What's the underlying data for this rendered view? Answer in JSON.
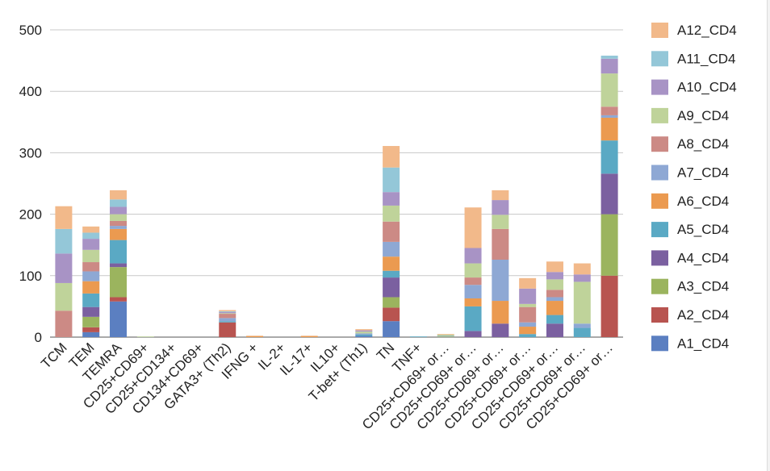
{
  "chart_data": {
    "type": "bar",
    "stacked": true,
    "title": "",
    "xlabel": "",
    "ylabel": "",
    "ylim": [
      0,
      500
    ],
    "yticks": [
      0,
      100,
      200,
      300,
      400,
      500
    ],
    "grid": true,
    "legend_position": "right",
    "categories": [
      "TCM",
      "TEM",
      "TEMRA",
      "CD25+CD69+",
      "CD25+CD134+",
      "CD134+CD69+",
      "GATA3+ (Th2)",
      "IFNG +",
      "IL-2+",
      "IL-17+",
      "IL10+",
      "T-bet+ (Th1)",
      "TN",
      "TNF+",
      "CD25+CD69+ or…",
      "CD25+CD69+ or…",
      "CD25+CD69+ or…",
      "CD25+CD69+ or…",
      "CD25+CD69+ or…",
      "CD25+CD69+ or…",
      "CD25+CD69+ or…"
    ],
    "series": [
      {
        "name": "A1_CD4",
        "color": "#5b7fc1",
        "values": [
          0,
          8,
          58,
          0,
          0,
          0,
          0,
          0,
          0,
          0,
          0,
          2,
          26,
          0,
          0,
          0,
          0,
          0,
          0,
          0,
          0
        ]
      },
      {
        "name": "A2_CD4",
        "color": "#b85450",
        "values": [
          0,
          8,
          7,
          0,
          0,
          0,
          24,
          0,
          0,
          0,
          0,
          0,
          22,
          0,
          0,
          0,
          0,
          0,
          0,
          0,
          100
        ]
      },
      {
        "name": "A3_CD4",
        "color": "#9bb45e",
        "values": [
          0,
          17,
          49,
          0,
          0,
          0,
          0,
          0,
          0,
          0,
          0,
          0,
          17,
          0,
          1,
          0,
          0,
          0,
          0,
          0,
          100
        ]
      },
      {
        "name": "A4_CD4",
        "color": "#7b60a0",
        "values": [
          0,
          16,
          6,
          0,
          0,
          0,
          0,
          0,
          0,
          0,
          0,
          0,
          32,
          0,
          0,
          10,
          22,
          0,
          22,
          0,
          66
        ]
      },
      {
        "name": "A5_CD4",
        "color": "#5aa9c4",
        "values": [
          0,
          22,
          38,
          0,
          0,
          0,
          2,
          0,
          0,
          0,
          0,
          2,
          11,
          1,
          0,
          40,
          0,
          5,
          14,
          15,
          54
        ]
      },
      {
        "name": "A6_CD4",
        "color": "#eb9a50",
        "values": [
          0,
          20,
          18,
          0,
          0,
          0,
          0,
          2,
          0,
          2,
          0,
          0,
          23,
          0,
          0,
          13,
          37,
          12,
          23,
          0,
          37
        ]
      },
      {
        "name": "A7_CD4",
        "color": "#8ea8d4",
        "values": [
          0,
          16,
          5,
          0,
          0,
          0,
          5,
          0,
          0,
          0,
          0,
          2,
          24,
          0,
          1,
          22,
          67,
          7,
          6,
          7,
          4
        ]
      },
      {
        "name": "A8_CD4",
        "color": "#cc8a85",
        "values": [
          43,
          15,
          8,
          0,
          0,
          0,
          7,
          0,
          0,
          0,
          0,
          0,
          33,
          0,
          0,
          12,
          50,
          25,
          12,
          0,
          14
        ]
      },
      {
        "name": "A9_CD4",
        "color": "#bfd39a",
        "values": [
          45,
          20,
          11,
          1,
          0,
          0,
          1,
          0,
          0,
          0,
          0,
          3,
          26,
          0,
          2,
          23,
          23,
          5,
          17,
          68,
          54
        ]
      },
      {
        "name": "A10_CD4",
        "color": "#a893c5",
        "values": [
          48,
          18,
          12,
          0,
          0,
          0,
          2,
          0,
          0,
          0,
          0,
          2,
          22,
          0,
          0,
          25,
          24,
          25,
          12,
          12,
          24
        ]
      },
      {
        "name": "A11_CD4",
        "color": "#94c7d8",
        "values": [
          40,
          10,
          12,
          0,
          0,
          0,
          1,
          0,
          0,
          0,
          0,
          0,
          40,
          0,
          0,
          0,
          0,
          0,
          0,
          0,
          5
        ]
      },
      {
        "name": "A12_CD4",
        "color": "#f2b98a",
        "values": [
          37,
          10,
          15,
          0,
          0,
          0,
          2,
          0,
          0,
          0,
          0,
          2,
          35,
          0,
          1,
          66,
          16,
          17,
          17,
          18,
          0
        ]
      }
    ]
  },
  "colors": {
    "gridline": "#c8c8c8",
    "axis": "#777777",
    "text": "#222222"
  }
}
